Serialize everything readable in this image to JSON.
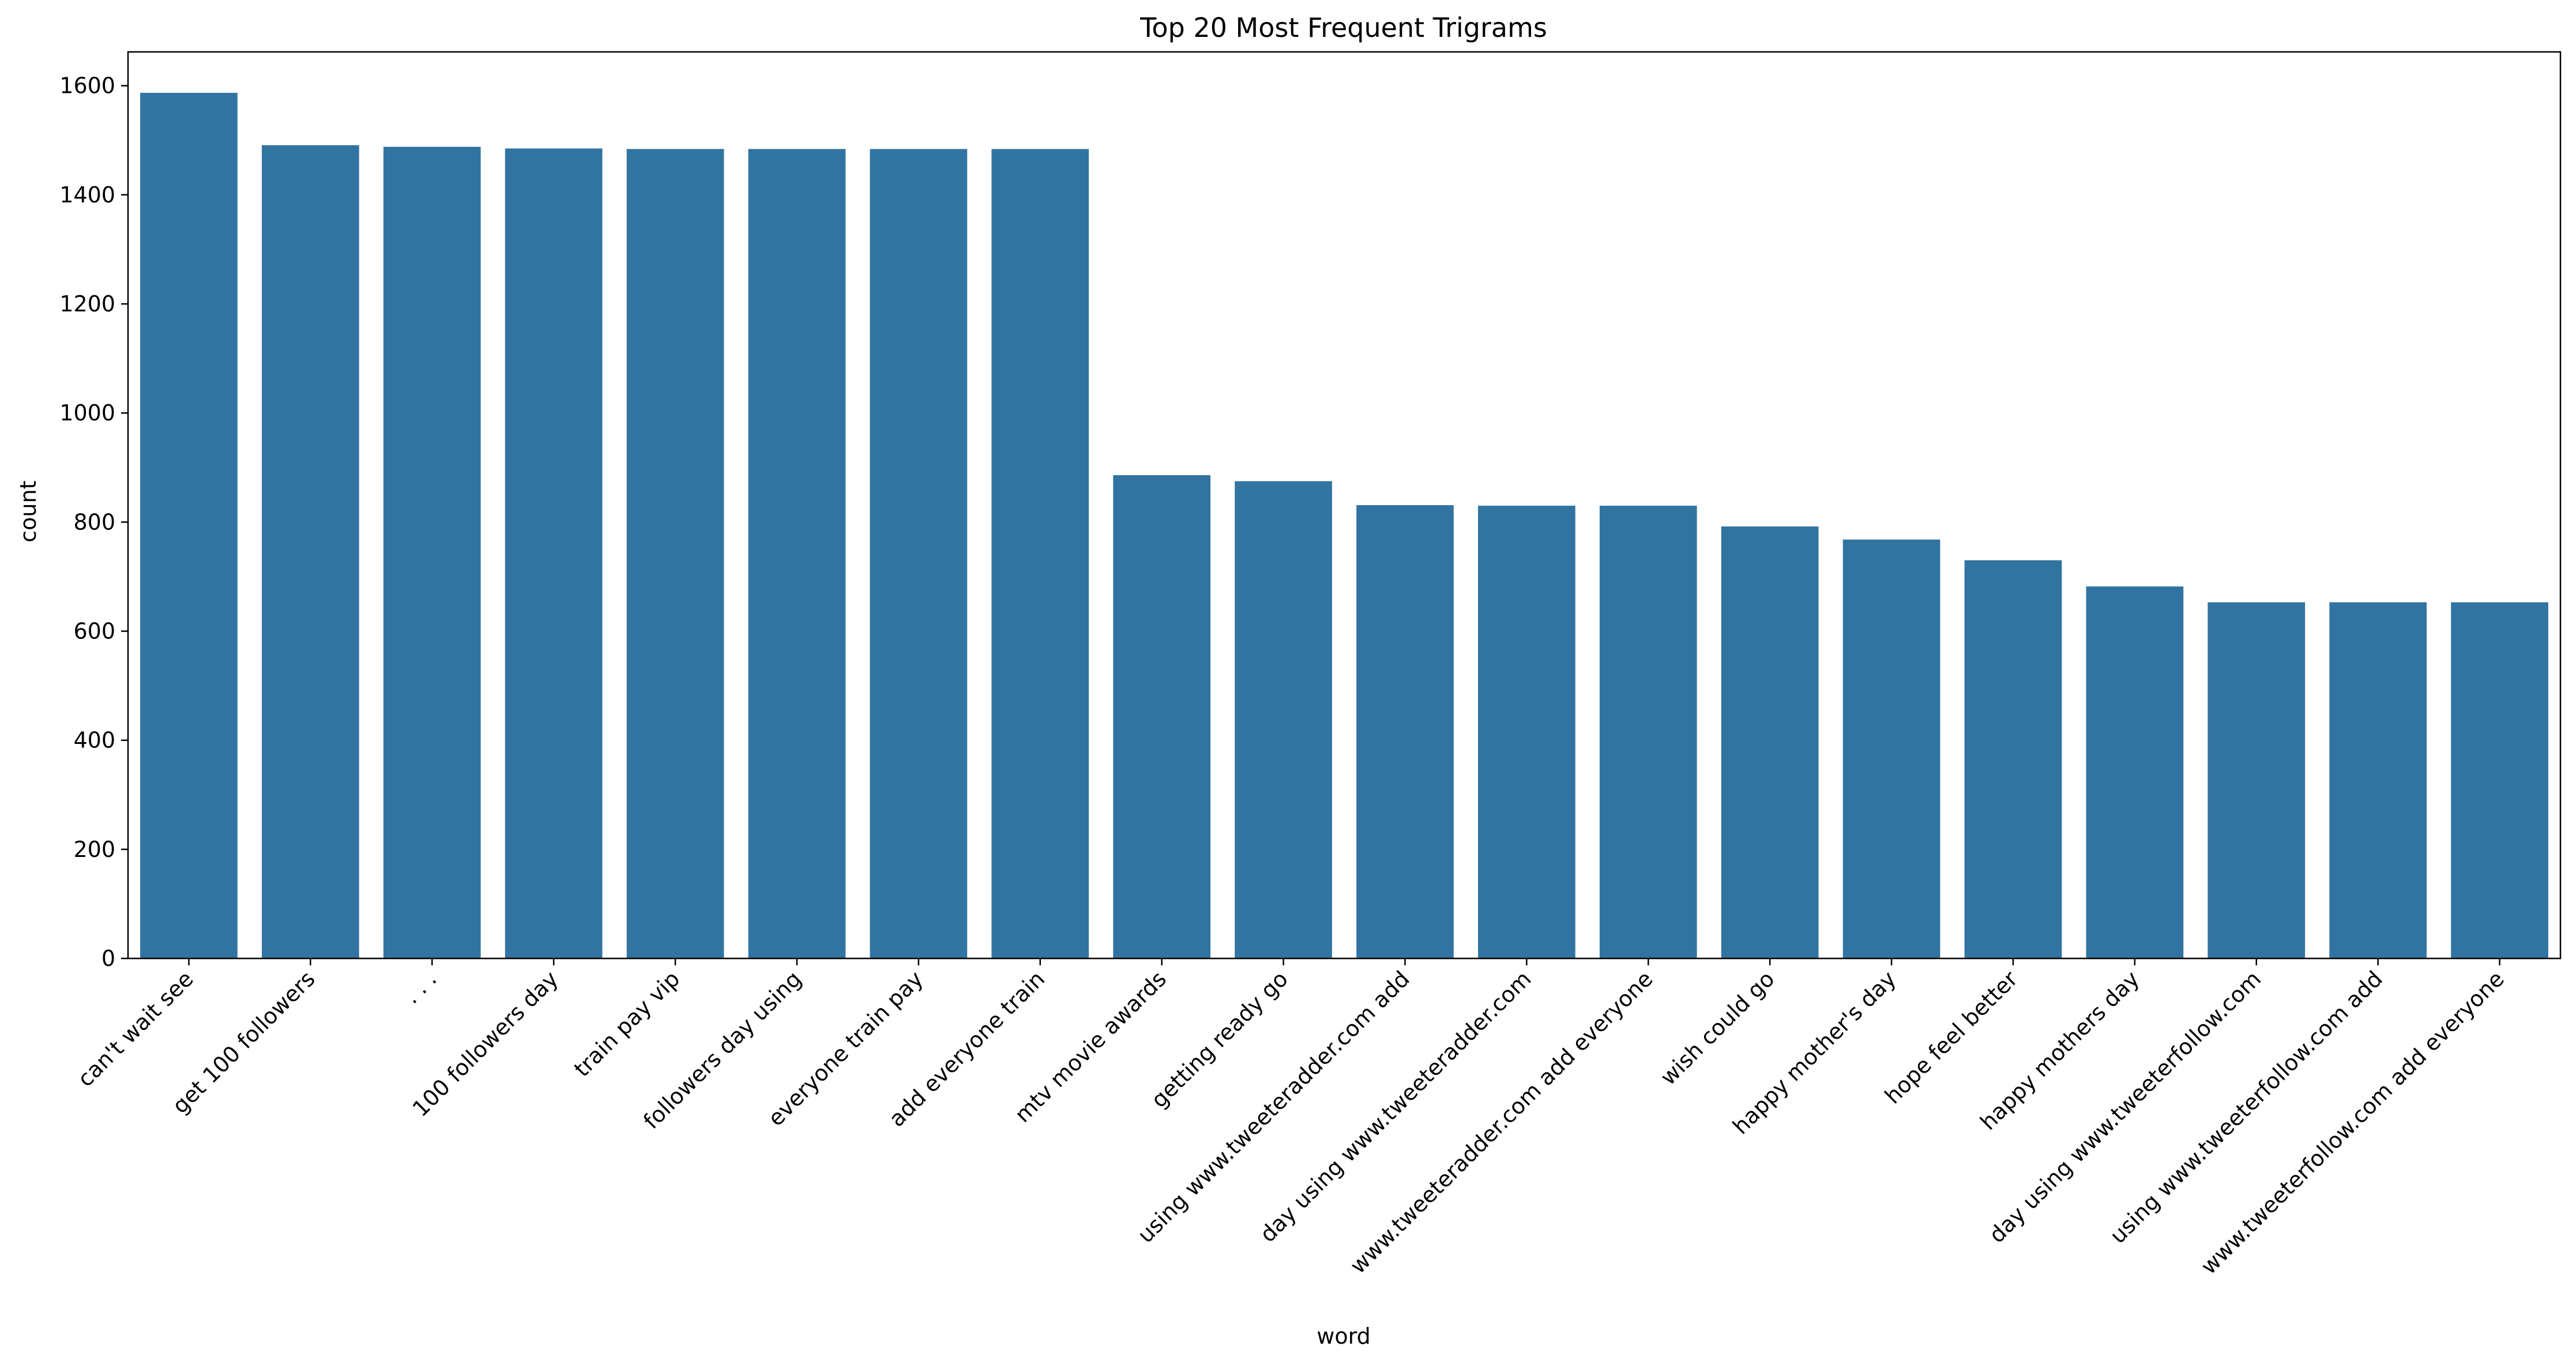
{
  "chart_data": {
    "type": "bar",
    "title": "Top 20 Most Frequent Trigrams",
    "xlabel": "word",
    "ylabel": "count",
    "ylim": [
      0,
      1662
    ],
    "yticks": [
      0,
      200,
      400,
      600,
      800,
      1000,
      1200,
      1400,
      1600
    ],
    "grid": false,
    "bar_color": "#3274a1",
    "categories": [
      "can't wait see",
      "get 100 followers",
      ". . .",
      "100 followers day",
      "train pay vip",
      "followers day using",
      "everyone train pay",
      "add everyone train",
      "mtv movie awards",
      "getting ready go",
      "using www.tweeteradder.com add",
      "day using www.tweeteradder.com",
      "www.tweeteradder.com add everyone",
      "wish could go",
      "happy mother's day",
      "hope feel better",
      "happy mothers day",
      "day using www.tweeterfollow.com",
      "using www.tweeterfollow.com add",
      "www.tweeterfollow.com add everyone"
    ],
    "values": [
      1587,
      1491,
      1488,
      1485,
      1484,
      1484,
      1484,
      1484,
      886,
      875,
      831,
      830,
      830,
      792,
      768,
      730,
      682,
      653,
      653,
      653
    ]
  }
}
